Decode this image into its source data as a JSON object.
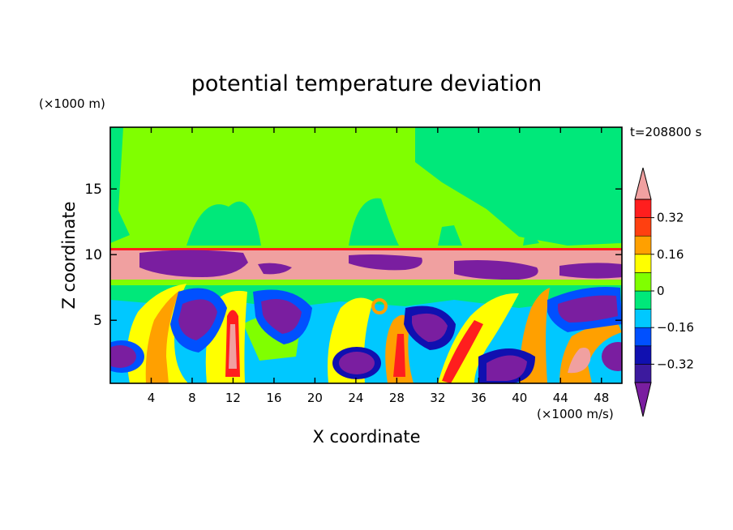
{
  "chart_data": {
    "type": "heatmap",
    "title": "potential temperature deviation",
    "xlabel": "X coordinate",
    "ylabel": "Z coordinate",
    "x_unit": "(×1000 m/s)",
    "y_unit": "(×1000 m)",
    "time_label": "t=208800 s",
    "xlim": [
      0,
      50
    ],
    "ylim": [
      0.2,
      19.7
    ],
    "x_ticks": [
      4,
      8,
      12,
      16,
      20,
      24,
      28,
      32,
      36,
      40,
      44,
      48
    ],
    "y_ticks": [
      5,
      10,
      15
    ],
    "colorbar": {
      "levels": [
        -0.4,
        -0.32,
        -0.24,
        -0.16,
        -0.08,
        0,
        0.08,
        0.16,
        0.24,
        0.32,
        0.4
      ],
      "tick_labels": [
        "0.32",
        "0.16",
        "0",
        "−0.16",
        "−0.32"
      ],
      "tick_values": [
        0.32,
        0.16,
        0,
        -0.16,
        -0.32
      ],
      "colors_low_to_high": [
        "#7a1ea0",
        "#3c1a9e",
        "#1010b0",
        "#0050ff",
        "#00c8ff",
        "#00e87a",
        "#80ff00",
        "#ffff00",
        "#ffa000",
        "#ff4010",
        "#ff1e1e",
        "#f0a0a0"
      ],
      "extend": "both"
    }
  }
}
